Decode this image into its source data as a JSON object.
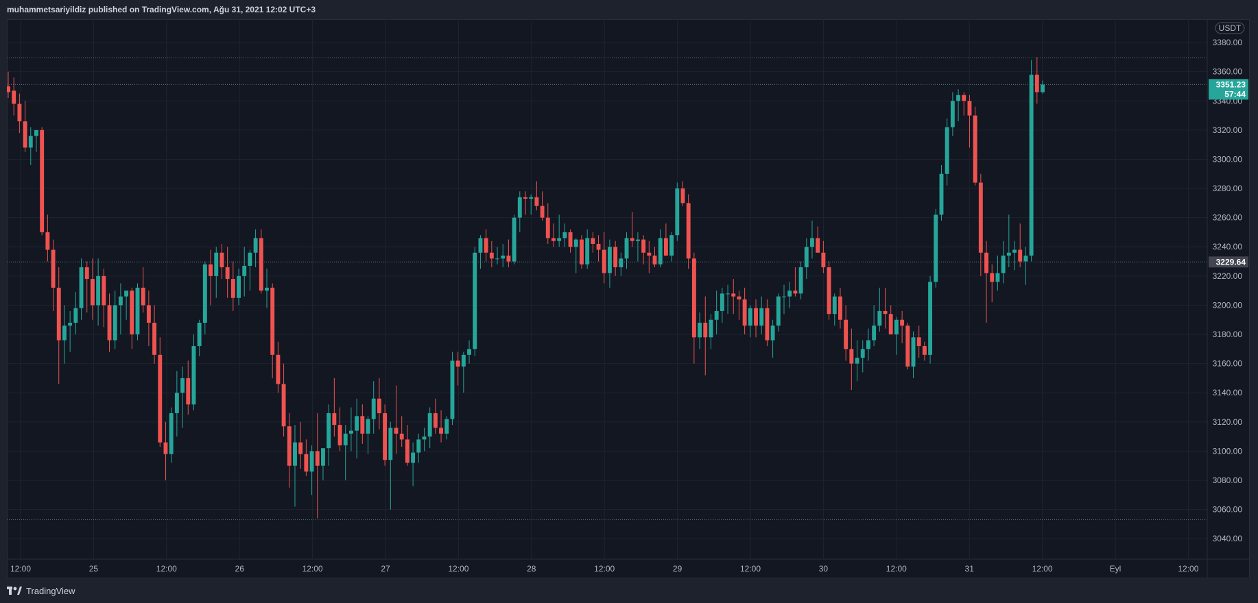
{
  "header": {
    "publisher": "muhammetsariyildiz",
    "text": "muhammetsariyildiz published on TradingView.com, Ağu 31, 2021 12:02 UTC+3"
  },
  "footer": {
    "brand": "TradingView"
  },
  "colors": {
    "background": "#131722",
    "up": "#26a69a",
    "down": "#ef5350",
    "grid": "#1f2331",
    "text": "#b2b5be",
    "last_price_tag": "#26a69a",
    "level_tag": "#434651"
  },
  "chart_data": {
    "type": "candlestick",
    "currency_label": "USDT",
    "ylim": [
      3026,
      3396
    ],
    "y_ticks": [
      3040,
      3060,
      3080,
      3100,
      3120,
      3140,
      3160,
      3180,
      3200,
      3220,
      3240,
      3260,
      3280,
      3300,
      3320,
      3340,
      3360,
      3380
    ],
    "x_ticks": [
      "12:00",
      "25",
      "12:00",
      "26",
      "12:00",
      "27",
      "12:00",
      "28",
      "12:00",
      "29",
      "12:00",
      "30",
      "12:00",
      "31",
      "12:00",
      "Eyl",
      "12:00"
    ],
    "last_price": {
      "value": 3351.23,
      "value_text": "3351.23",
      "countdown": "57:44"
    },
    "marked_level": {
      "value": 3229.64,
      "value_text": "3229.64"
    },
    "horizontal_lines": [
      3369.5,
      3351.23,
      3229.64,
      3053
    ],
    "candles": [
      [
        3350,
        3360,
        3342,
        3346
      ],
      [
        3347,
        3356,
        3330,
        3338
      ],
      [
        3338,
        3345,
        3318,
        3326
      ],
      [
        3326,
        3340,
        3305,
        3308
      ],
      [
        3308,
        3322,
        3296,
        3316
      ],
      [
        3316,
        3320,
        3305,
        3320
      ],
      [
        3320,
        3322,
        3248,
        3250
      ],
      [
        3250,
        3262,
        3230,
        3238
      ],
      [
        3238,
        3245,
        3196,
        3212
      ],
      [
        3212,
        3226,
        3146,
        3176
      ],
      [
        3176,
        3200,
        3160,
        3186
      ],
      [
        3186,
        3196,
        3168,
        3188
      ],
      [
        3188,
        3209,
        3180,
        3198
      ],
      [
        3198,
        3232,
        3190,
        3226
      ],
      [
        3226,
        3230,
        3195,
        3218
      ],
      [
        3218,
        3232,
        3190,
        3200
      ],
      [
        3200,
        3232,
        3186,
        3220
      ],
      [
        3220,
        3225,
        3185,
        3200
      ],
      [
        3200,
        3208,
        3168,
        3176
      ],
      [
        3176,
        3210,
        3170,
        3200
      ],
      [
        3200,
        3215,
        3180,
        3206
      ],
      [
        3206,
        3210,
        3190,
        3210
      ],
      [
        3210,
        3212,
        3170,
        3180
      ],
      [
        3180,
        3215,
        3176,
        3212
      ],
      [
        3212,
        3226,
        3195,
        3200
      ],
      [
        3200,
        3210,
        3172,
        3188
      ],
      [
        3188,
        3200,
        3160,
        3166
      ],
      [
        3166,
        3178,
        3103,
        3106
      ],
      [
        3106,
        3120,
        3080,
        3098
      ],
      [
        3098,
        3130,
        3092,
        3126
      ],
      [
        3126,
        3155,
        3110,
        3140
      ],
      [
        3140,
        3158,
        3116,
        3150
      ],
      [
        3150,
        3162,
        3125,
        3132
      ],
      [
        3132,
        3180,
        3128,
        3172
      ],
      [
        3172,
        3190,
        3165,
        3188
      ],
      [
        3188,
        3230,
        3180,
        3228
      ],
      [
        3228,
        3238,
        3200,
        3220
      ],
      [
        3220,
        3240,
        3205,
        3236
      ],
      [
        3236,
        3242,
        3218,
        3226
      ],
      [
        3226,
        3240,
        3205,
        3218
      ],
      [
        3218,
        3230,
        3196,
        3205
      ],
      [
        3205,
        3225,
        3200,
        3220
      ],
      [
        3220,
        3240,
        3206,
        3227
      ],
      [
        3227,
        3238,
        3210,
        3236
      ],
      [
        3236,
        3252,
        3226,
        3246
      ],
      [
        3246,
        3252,
        3208,
        3210
      ],
      [
        3210,
        3225,
        3198,
        3212
      ],
      [
        3212,
        3215,
        3150,
        3166
      ],
      [
        3166,
        3175,
        3140,
        3146
      ],
      [
        3146,
        3160,
        3110,
        3117
      ],
      [
        3117,
        3126,
        3075,
        3090
      ],
      [
        3090,
        3118,
        3062,
        3106
      ],
      [
        3106,
        3120,
        3088,
        3098
      ],
      [
        3098,
        3108,
        3083,
        3086
      ],
      [
        3086,
        3104,
        3070,
        3100
      ],
      [
        3100,
        3126,
        3054,
        3090
      ],
      [
        3090,
        3102,
        3080,
        3102
      ],
      [
        3102,
        3132,
        3090,
        3126
      ],
      [
        3126,
        3150,
        3110,
        3118
      ],
      [
        3118,
        3130,
        3100,
        3104
      ],
      [
        3104,
        3118,
        3080,
        3112
      ],
      [
        3112,
        3130,
        3100,
        3114
      ],
      [
        3114,
        3136,
        3095,
        3124
      ],
      [
        3124,
        3132,
        3105,
        3112
      ],
      [
        3112,
        3124,
        3098,
        3122
      ],
      [
        3122,
        3148,
        3112,
        3136
      ],
      [
        3136,
        3150,
        3115,
        3126
      ],
      [
        3126,
        3132,
        3090,
        3094
      ],
      [
        3094,
        3120,
        3060,
        3116
      ],
      [
        3116,
        3145,
        3098,
        3112
      ],
      [
        3112,
        3124,
        3103,
        3108
      ],
      [
        3108,
        3118,
        3090,
        3092
      ],
      [
        3092,
        3106,
        3076,
        3099
      ],
      [
        3099,
        3112,
        3092,
        3108
      ],
      [
        3108,
        3116,
        3100,
        3110
      ],
      [
        3110,
        3130,
        3102,
        3126
      ],
      [
        3126,
        3136,
        3112,
        3116
      ],
      [
        3116,
        3128,
        3106,
        3112
      ],
      [
        3112,
        3124,
        3108,
        3122
      ],
      [
        3122,
        3168,
        3118,
        3162
      ],
      [
        3162,
        3168,
        3145,
        3158
      ],
      [
        3158,
        3168,
        3140,
        3166
      ],
      [
        3166,
        3176,
        3160,
        3170
      ],
      [
        3170,
        3240,
        3165,
        3236
      ],
      [
        3236,
        3248,
        3225,
        3246
      ],
      [
        3246,
        3252,
        3230,
        3236
      ],
      [
        3236,
        3244,
        3226,
        3232
      ],
      [
        3232,
        3240,
        3228,
        3232
      ],
      [
        3232,
        3242,
        3226,
        3234
      ],
      [
        3234,
        3245,
        3226,
        3230
      ],
      [
        3230,
        3262,
        3228,
        3260
      ],
      [
        3260,
        3278,
        3250,
        3274
      ],
      [
        3274,
        3278,
        3262,
        3273
      ],
      [
        3273,
        3276,
        3262,
        3274
      ],
      [
        3274,
        3285,
        3265,
        3268
      ],
      [
        3268,
        3278,
        3258,
        3260
      ],
      [
        3260,
        3270,
        3242,
        3246
      ],
      [
        3246,
        3256,
        3240,
        3244
      ],
      [
        3244,
        3262,
        3240,
        3246
      ],
      [
        3246,
        3256,
        3240,
        3250
      ],
      [
        3250,
        3252,
        3236,
        3240
      ],
      [
        3240,
        3246,
        3222,
        3245
      ],
      [
        3245,
        3248,
        3225,
        3228
      ],
      [
        3228,
        3252,
        3225,
        3246
      ],
      [
        3246,
        3250,
        3236,
        3242
      ],
      [
        3242,
        3248,
        3230,
        3238
      ],
      [
        3238,
        3250,
        3215,
        3222
      ],
      [
        3222,
        3245,
        3212,
        3240
      ],
      [
        3240,
        3244,
        3220,
        3226
      ],
      [
        3226,
        3236,
        3220,
        3232
      ],
      [
        3232,
        3250,
        3225,
        3246
      ],
      [
        3246,
        3264,
        3240,
        3244
      ],
      [
        3244,
        3250,
        3230,
        3245
      ],
      [
        3245,
        3248,
        3228,
        3236
      ],
      [
        3236,
        3244,
        3222,
        3234
      ],
      [
        3234,
        3240,
        3226,
        3228
      ],
      [
        3228,
        3252,
        3226,
        3246
      ],
      [
        3246,
        3256,
        3234,
        3234
      ],
      [
        3234,
        3250,
        3230,
        3248
      ],
      [
        3248,
        3284,
        3244,
        3280
      ],
      [
        3280,
        3285,
        3268,
        3270
      ],
      [
        3270,
        3276,
        3225,
        3232
      ],
      [
        3232,
        3236,
        3160,
        3178
      ],
      [
        3178,
        3195,
        3170,
        3188
      ],
      [
        3188,
        3206,
        3152,
        3178
      ],
      [
        3178,
        3194,
        3170,
        3190
      ],
      [
        3190,
        3210,
        3180,
        3196
      ],
      [
        3196,
        3212,
        3188,
        3208
      ],
      [
        3208,
        3214,
        3194,
        3208
      ],
      [
        3208,
        3218,
        3194,
        3206
      ],
      [
        3206,
        3210,
        3190,
        3204
      ],
      [
        3204,
        3212,
        3180,
        3186
      ],
      [
        3186,
        3200,
        3178,
        3198
      ],
      [
        3198,
        3204,
        3178,
        3186
      ],
      [
        3186,
        3206,
        3180,
        3198
      ],
      [
        3198,
        3204,
        3172,
        3176
      ],
      [
        3176,
        3190,
        3164,
        3186
      ],
      [
        3186,
        3208,
        3182,
        3206
      ],
      [
        3206,
        3214,
        3194,
        3206
      ],
      [
        3206,
        3216,
        3198,
        3210
      ],
      [
        3210,
        3226,
        3206,
        3208
      ],
      [
        3208,
        3230,
        3204,
        3226
      ],
      [
        3226,
        3246,
        3218,
        3240
      ],
      [
        3240,
        3258,
        3232,
        3246
      ],
      [
        3246,
        3254,
        3236,
        3236
      ],
      [
        3236,
        3244,
        3222,
        3226
      ],
      [
        3226,
        3230,
        3190,
        3194
      ],
      [
        3194,
        3208,
        3186,
        3206
      ],
      [
        3206,
        3212,
        3184,
        3190
      ],
      [
        3190,
        3200,
        3162,
        3170
      ],
      [
        3170,
        3184,
        3142,
        3160
      ],
      [
        3160,
        3176,
        3148,
        3164
      ],
      [
        3164,
        3176,
        3154,
        3170
      ],
      [
        3170,
        3184,
        3162,
        3176
      ],
      [
        3176,
        3200,
        3172,
        3186
      ],
      [
        3186,
        3212,
        3182,
        3196
      ],
      [
        3196,
        3212,
        3184,
        3194
      ],
      [
        3194,
        3200,
        3180,
        3180
      ],
      [
        3180,
        3192,
        3166,
        3190
      ],
      [
        3190,
        3196,
        3174,
        3186
      ],
      [
        3186,
        3188,
        3156,
        3158
      ],
      [
        3158,
        3182,
        3150,
        3178
      ],
      [
        3178,
        3186,
        3164,
        3172
      ],
      [
        3172,
        3175,
        3162,
        3166
      ],
      [
        3166,
        3220,
        3160,
        3216
      ],
      [
        3216,
        3266,
        3212,
        3262
      ],
      [
        3262,
        3296,
        3258,
        3290
      ],
      [
        3290,
        3328,
        3282,
        3322
      ],
      [
        3322,
        3346,
        3316,
        3340
      ],
      [
        3340,
        3348,
        3326,
        3344
      ],
      [
        3344,
        3346,
        3330,
        3340
      ],
      [
        3340,
        3344,
        3308,
        3330
      ],
      [
        3330,
        3336,
        3282,
        3284
      ],
      [
        3284,
        3290,
        3220,
        3236
      ],
      [
        3236,
        3244,
        3188,
        3222
      ],
      [
        3222,
        3228,
        3202,
        3216
      ],
      [
        3216,
        3234,
        3210,
        3222
      ],
      [
        3222,
        3244,
        3215,
        3234
      ],
      [
        3234,
        3262,
        3226,
        3236
      ],
      [
        3236,
        3244,
        3224,
        3238
      ],
      [
        3238,
        3256,
        3226,
        3230
      ],
      [
        3230,
        3240,
        3214,
        3234
      ],
      [
        3234,
        3368,
        3230,
        3358
      ],
      [
        3358,
        3370,
        3338,
        3346
      ],
      [
        3346,
        3354,
        3345,
        3351.23
      ]
    ]
  }
}
